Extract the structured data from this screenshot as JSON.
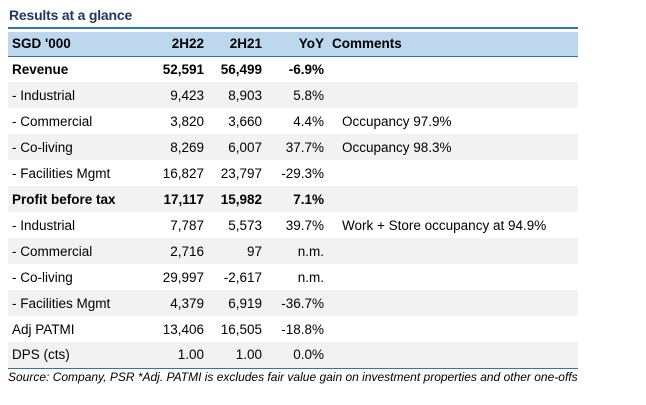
{
  "title": "Results at a glance",
  "header": {
    "label": "SGD '000",
    "col1": "2H22",
    "col2": "2H21",
    "col3": "YoY",
    "col4": "Comments"
  },
  "rows": [
    {
      "label": "Revenue",
      "v1": "52,591",
      "v2": "56,499",
      "yoy": "-6.9%",
      "comment": ""
    },
    {
      "label": "- Industrial",
      "v1": "9,423",
      "v2": "8,903",
      "yoy": "5.8%",
      "comment": ""
    },
    {
      "label": "- Commercial",
      "v1": "3,820",
      "v2": "3,660",
      "yoy": "4.4%",
      "comment": "Occupancy 97.9%"
    },
    {
      "label": "- Co-living",
      "v1": "8,269",
      "v2": "6,007",
      "yoy": "37.7%",
      "comment": "Occupancy 98.3%"
    },
    {
      "label": "- Facilities Mgmt",
      "v1": "16,827",
      "v2": "23,797",
      "yoy": "-29.3%",
      "comment": ""
    },
    {
      "label": "Profit before tax",
      "v1": "17,117",
      "v2": "15,982",
      "yoy": "7.1%",
      "comment": ""
    },
    {
      "label": "- Industrial",
      "v1": "7,787",
      "v2": "5,573",
      "yoy": "39.7%",
      "comment": "Work + Store occupancy at 94.9%"
    },
    {
      "label": "- Commercial",
      "v1": "2,716",
      "v2": "97",
      "yoy": "n.m.",
      "comment": ""
    },
    {
      "label": "- Co-living",
      "v1": "29,997",
      "v2": "-2,617",
      "yoy": "n.m.",
      "comment": ""
    },
    {
      "label": "- Facilities Mgmt",
      "v1": "4,379",
      "v2": "6,919",
      "yoy": "-36.7%",
      "comment": ""
    },
    {
      "label": "Adj PATMI",
      "v1": "13,406",
      "v2": "16,505",
      "yoy": "-18.8%",
      "comment": ""
    },
    {
      "label": "DPS (cts)",
      "v1": "1.00",
      "v2": "1.00",
      "yoy": "0.0%",
      "comment": ""
    }
  ],
  "source": "Source: Company, PSR *Adj. PATMI is excludes fair value gain on investment properties and other one-offs",
  "colors": {
    "title": "#1f3864",
    "header_bg": "#bdd7ee",
    "rule": "#2e75b6",
    "alt_row": "#f2f2f2"
  }
}
